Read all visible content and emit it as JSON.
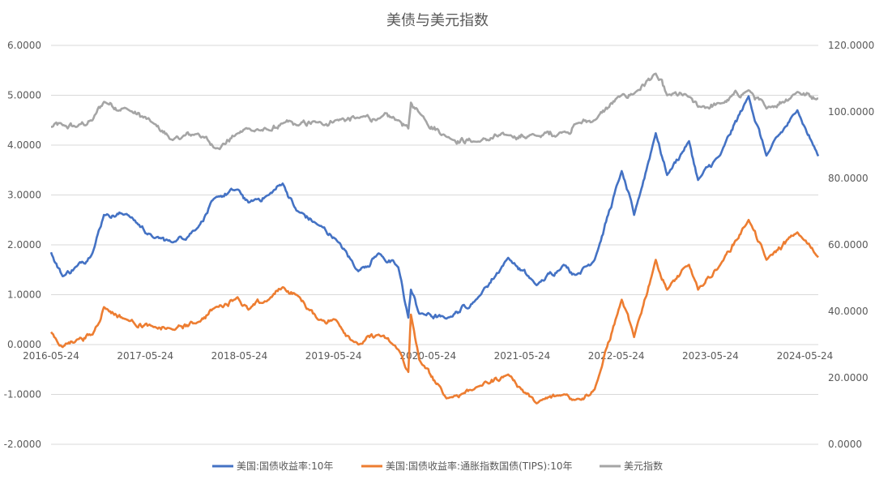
{
  "chart_data": {
    "type": "line",
    "title": "美债与美元指数",
    "x_tick_labels": [
      "2016-05-24",
      "2017-05-24",
      "2018-05-24",
      "2019-05-24",
      "2020-05-24",
      "2021-05-24",
      "2022-05-24",
      "2023-05-24",
      "2024-05-24"
    ],
    "x_range": [
      "2016-05-24",
      "2024-07-15"
    ],
    "y_left": {
      "ylim": [
        -2,
        6
      ],
      "tick_labels": [
        "-2.0000",
        "-1.0000",
        "0.0000",
        "1.0000",
        "2.0000",
        "3.0000",
        "4.0000",
        "5.0000",
        "6.0000"
      ]
    },
    "y_right": {
      "ylim": [
        0,
        120
      ],
      "tick_labels": [
        "0.0000",
        "20.0000",
        "40.0000",
        "60.0000",
        "80.0000",
        "100.0000",
        "120.0000"
      ]
    },
    "grid": "horizontal",
    "legend_position": "bottom",
    "series": [
      {
        "name": "美国:国债收益率:10年",
        "axis": "left",
        "color": "#4472c4",
        "points": [
          [
            "2016-05-24",
            1.85
          ],
          [
            "2016-07-08",
            1.37
          ],
          [
            "2016-09-01",
            1.57
          ],
          [
            "2016-11-01",
            1.84
          ],
          [
            "2016-12-15",
            2.6
          ],
          [
            "2017-03-13",
            2.62
          ],
          [
            "2017-06-26",
            2.14
          ],
          [
            "2017-09-07",
            2.05
          ],
          [
            "2017-12-15",
            2.35
          ],
          [
            "2018-02-21",
            2.95
          ],
          [
            "2018-05-17",
            3.11
          ],
          [
            "2018-06-28",
            2.85
          ],
          [
            "2018-09-15",
            3.0
          ],
          [
            "2018-11-08",
            3.23
          ],
          [
            "2018-12-31",
            2.69
          ],
          [
            "2019-03-25",
            2.4
          ],
          [
            "2019-06-01",
            2.12
          ],
          [
            "2019-08-28",
            1.47
          ],
          [
            "2019-11-15",
            1.83
          ],
          [
            "2020-01-30",
            1.55
          ],
          [
            "2020-03-09",
            0.54
          ],
          [
            "2020-03-19",
            1.1
          ],
          [
            "2020-04-20",
            0.62
          ],
          [
            "2020-08-04",
            0.52
          ],
          [
            "2020-12-01",
            0.92
          ],
          [
            "2021-03-31",
            1.74
          ],
          [
            "2021-07-19",
            1.19
          ],
          [
            "2021-11-01",
            1.6
          ],
          [
            "2021-12-20",
            1.4
          ],
          [
            "2022-03-01",
            1.7
          ],
          [
            "2022-06-14",
            3.48
          ],
          [
            "2022-08-01",
            2.6
          ],
          [
            "2022-10-24",
            4.24
          ],
          [
            "2022-12-07",
            3.4
          ],
          [
            "2023-03-02",
            4.08
          ],
          [
            "2023-04-06",
            3.3
          ],
          [
            "2023-07-01",
            3.8
          ],
          [
            "2023-10-19",
            4.98
          ],
          [
            "2023-12-27",
            3.79
          ],
          [
            "2024-04-25",
            4.7
          ],
          [
            "2024-07-15",
            3.78
          ]
        ]
      },
      {
        "name": "美国:国债收益率:通胀指数国债(TIPS):10年",
        "axis": "left",
        "color": "#ed7d31",
        "points": [
          [
            "2016-05-24",
            0.25
          ],
          [
            "2016-07-08",
            -0.05
          ],
          [
            "2016-09-01",
            0.1
          ],
          [
            "2016-11-01",
            0.2
          ],
          [
            "2016-12-15",
            0.75
          ],
          [
            "2017-03-13",
            0.5
          ],
          [
            "2017-06-26",
            0.35
          ],
          [
            "2017-09-07",
            0.3
          ],
          [
            "2017-12-15",
            0.45
          ],
          [
            "2018-02-21",
            0.75
          ],
          [
            "2018-05-17",
            0.95
          ],
          [
            "2018-06-28",
            0.7
          ],
          [
            "2018-09-15",
            0.9
          ],
          [
            "2018-11-08",
            1.15
          ],
          [
            "2018-12-31",
            1.0
          ],
          [
            "2019-03-25",
            0.5
          ],
          [
            "2019-06-01",
            0.5
          ],
          [
            "2019-08-28",
            0.0
          ],
          [
            "2019-11-15",
            0.2
          ],
          [
            "2020-01-30",
            -0.1
          ],
          [
            "2020-03-09",
            -0.55
          ],
          [
            "2020-03-19",
            0.6
          ],
          [
            "2020-04-20",
            -0.3
          ],
          [
            "2020-08-04",
            -1.08
          ],
          [
            "2020-12-01",
            -0.85
          ],
          [
            "2021-03-31",
            -0.6
          ],
          [
            "2021-07-19",
            -1.18
          ],
          [
            "2021-11-01",
            -1.0
          ],
          [
            "2021-12-20",
            -1.1
          ],
          [
            "2022-03-01",
            -0.9
          ],
          [
            "2022-06-14",
            0.9
          ],
          [
            "2022-08-01",
            0.15
          ],
          [
            "2022-10-24",
            1.7
          ],
          [
            "2022-12-07",
            1.1
          ],
          [
            "2023-03-02",
            1.6
          ],
          [
            "2023-04-06",
            1.1
          ],
          [
            "2023-07-01",
            1.6
          ],
          [
            "2023-10-19",
            2.5
          ],
          [
            "2023-12-27",
            1.7
          ],
          [
            "2024-04-25",
            2.25
          ],
          [
            "2024-07-15",
            1.75
          ]
        ]
      },
      {
        "name": "美元指数",
        "axis": "right",
        "color": "#a5a5a5",
        "points": [
          [
            "2016-05-24",
            95.5
          ],
          [
            "2016-07-08",
            96.0
          ],
          [
            "2016-09-01",
            95.5
          ],
          [
            "2016-11-01",
            97.5
          ],
          [
            "2016-12-15",
            103.0
          ],
          [
            "2017-03-13",
            101.0
          ],
          [
            "2017-06-26",
            96.5
          ],
          [
            "2017-09-07",
            91.5
          ],
          [
            "2017-12-15",
            93.5
          ],
          [
            "2018-02-21",
            89.0
          ],
          [
            "2018-05-17",
            93.5
          ],
          [
            "2018-06-28",
            95.0
          ],
          [
            "2018-09-15",
            94.5
          ],
          [
            "2018-11-08",
            96.5
          ],
          [
            "2018-12-31",
            96.0
          ],
          [
            "2019-03-25",
            96.8
          ],
          [
            "2019-06-01",
            97.5
          ],
          [
            "2019-08-28",
            98.2
          ],
          [
            "2019-11-15",
            98.0
          ],
          [
            "2020-01-30",
            97.5
          ],
          [
            "2020-03-09",
            95.0
          ],
          [
            "2020-03-19",
            102.8
          ],
          [
            "2020-04-20",
            99.8
          ],
          [
            "2020-08-04",
            92.5
          ],
          [
            "2020-12-01",
            91.0
          ],
          [
            "2021-03-31",
            93.0
          ],
          [
            "2021-07-19",
            92.8
          ],
          [
            "2021-11-01",
            94.0
          ],
          [
            "2021-12-20",
            96.5
          ],
          [
            "2022-03-01",
            97.5
          ],
          [
            "2022-06-14",
            105.0
          ],
          [
            "2022-08-01",
            105.5
          ],
          [
            "2022-10-24",
            111.5
          ],
          [
            "2022-12-07",
            105.0
          ],
          [
            "2023-03-02",
            104.5
          ],
          [
            "2023-04-06",
            101.5
          ],
          [
            "2023-07-01",
            102.5
          ],
          [
            "2023-10-19",
            106.5
          ],
          [
            "2023-12-27",
            101.0
          ],
          [
            "2024-04-25",
            106.0
          ],
          [
            "2024-07-15",
            104.0
          ]
        ]
      }
    ]
  }
}
